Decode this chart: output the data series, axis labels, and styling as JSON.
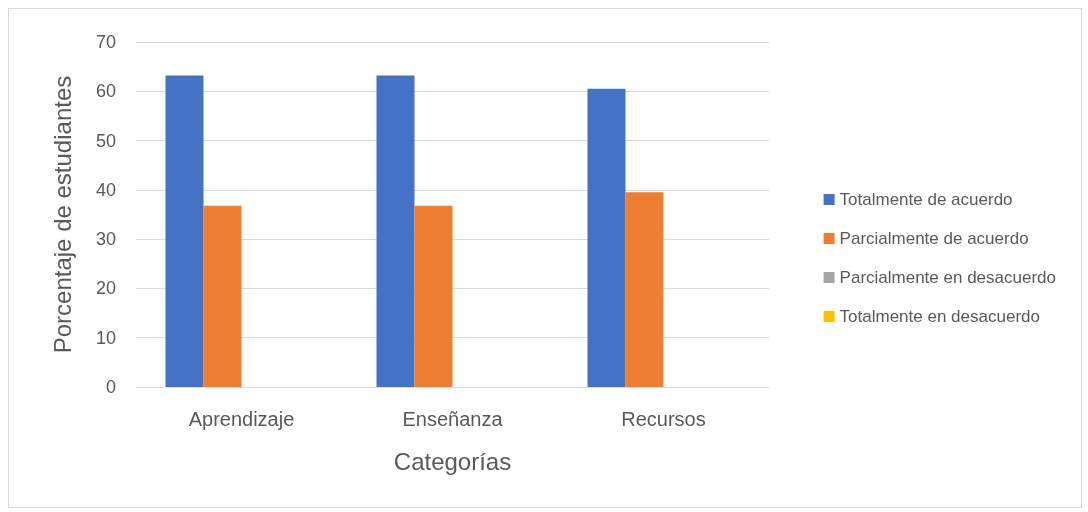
{
  "chart_data": {
    "type": "bar",
    "xlabel": "Categorías",
    "ylabel": "Porcentaje de estudiantes",
    "categories": [
      "Aprendizaje",
      "Enseñanza",
      "Recursos"
    ],
    "series": [
      {
        "name": "Totalmente de acuerdo",
        "color": "#4472c4",
        "values": [
          63.2,
          63.2,
          60.5
        ]
      },
      {
        "name": "Parcialmente de acuerdo",
        "color": "#ed7d31",
        "values": [
          36.8,
          36.8,
          39.5
        ]
      },
      {
        "name": "Parcialmente en desacuerdo",
        "color": "#a5a5a5",
        "values": [
          0,
          0,
          0
        ]
      },
      {
        "name": "Totalmente en desacuerdo",
        "color": "#ffc000",
        "values": [
          0,
          0,
          0
        ]
      }
    ],
    "ylim": [
      0,
      70
    ],
    "yticks": [
      0,
      10,
      20,
      30,
      40,
      50,
      60,
      70
    ],
    "grid": "y",
    "legend": "right"
  }
}
